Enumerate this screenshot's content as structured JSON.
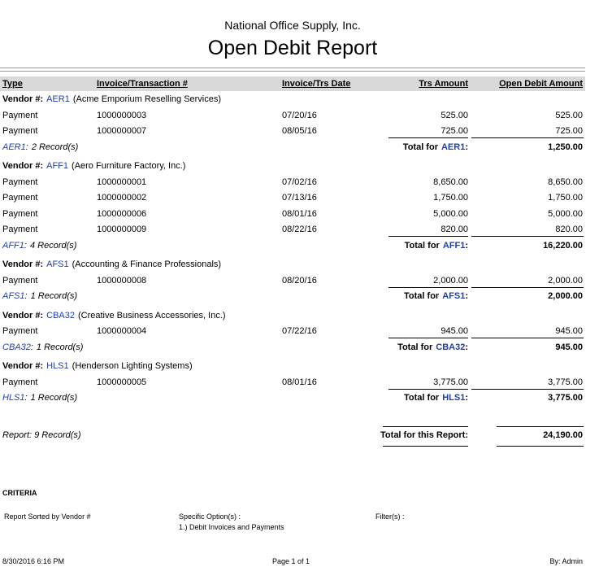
{
  "header": {
    "company": "National Office Supply, Inc.",
    "title": "Open Debit Report"
  },
  "columns": [
    "Type",
    "Invoice/Transaction #",
    "Invoice/Trs Date",
    "Trs Amount",
    "Open Debit Amount"
  ],
  "labels": {
    "vendor": "Vendor #:",
    "total_for": "Total for",
    "colon": ":"
  },
  "groups": [
    {
      "code": "AER1",
      "name": "(Acme Emporium Reselling Services)",
      "rows": [
        [
          "Payment",
          "1000000003",
          "07/20/16",
          "525.00",
          "525.00"
        ],
        [
          "Payment",
          "1000000007",
          "08/05/16",
          "725.00",
          "725.00"
        ]
      ],
      "records": "2 Record(s)",
      "total": "1,250.00"
    },
    {
      "code": "AFF1",
      "name": "(Aero Furniture Factory, Inc.)",
      "rows": [
        [
          "Payment",
          "1000000001",
          "07/02/16",
          "8,650.00",
          "8,650.00"
        ],
        [
          "Payment",
          "1000000002",
          "07/13/16",
          "1,750.00",
          "1,750.00"
        ],
        [
          "Payment",
          "1000000006",
          "08/01/16",
          "5,000.00",
          "5,000.00"
        ],
        [
          "Payment",
          "1000000009",
          "08/22/16",
          "820.00",
          "820.00"
        ]
      ],
      "records": "4 Record(s)",
      "total": "16,220.00"
    },
    {
      "code": "AFS1",
      "name": "(Accounting & Finance Professionals)",
      "rows": [
        [
          "Payment",
          "1000000008",
          "08/20/16",
          "2,000.00",
          "2,000.00"
        ]
      ],
      "records": "1 Record(s)",
      "total": "2,000.00"
    },
    {
      "code": "CBA32",
      "name": "(Creative Business Accessories, Inc.)",
      "rows": [
        [
          "Payment",
          "1000000004",
          "07/22/16",
          "945.00",
          "945.00"
        ]
      ],
      "records": "1 Record(s)",
      "total": "945.00"
    },
    {
      "code": "HLS1",
      "name": "(Henderson Lighting Systems)",
      "rows": [
        [
          "Payment",
          "1000000005",
          "08/01/16",
          "3,775.00",
          "3,775.00"
        ]
      ],
      "records": "1 Record(s)",
      "total": "3,775.00"
    }
  ],
  "report_total": {
    "records": "Report: 9 Record(s)",
    "label": "Total for this Report:",
    "amount": "24,190.00"
  },
  "criteria": {
    "title": "CRITERIA",
    "sorted": "Report Sorted by Vendor #",
    "options_label": "Specific Option(s) :",
    "options": [
      "1.) Debit Invoices and Payments"
    ],
    "filters_label": "Filter(s) :"
  },
  "footer": {
    "printed": "8/30/2016 6:16 PM",
    "page": "Page 1 of 1",
    "user": "By: Admin"
  }
}
